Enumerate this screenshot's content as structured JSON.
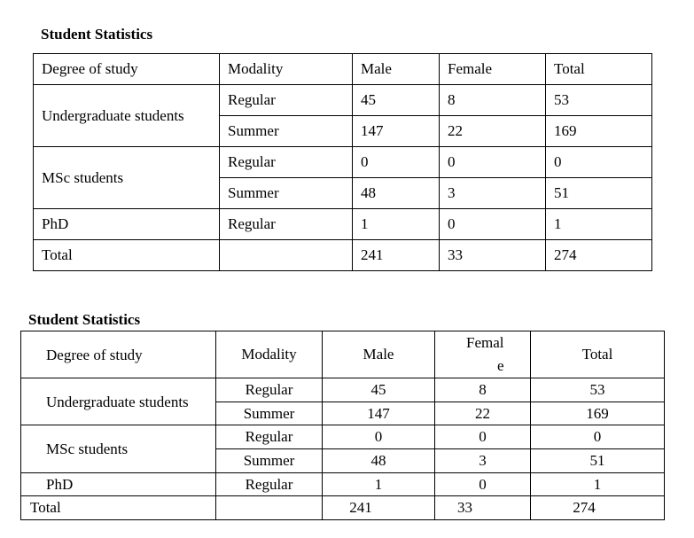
{
  "tables": [
    {
      "title": "Student Statistics",
      "header": [
        "Degree of study",
        "Modality",
        "Male",
        "Female",
        "Total"
      ],
      "groups": [
        {
          "degree": "Undergraduate students",
          "rows": [
            [
              "Regular",
              45,
              8,
              53
            ],
            [
              "Summer",
              147,
              22,
              169
            ]
          ]
        },
        {
          "degree": "MSc students",
          "rows": [
            [
              "Regular",
              0,
              0,
              0
            ],
            [
              "Summer",
              48,
              3,
              51
            ]
          ]
        },
        {
          "degree": "PhD",
          "rows": [
            [
              "Regular",
              1,
              0,
              1
            ]
          ]
        }
      ],
      "total": {
        "label": "Total",
        "values": [
          241,
          33,
          274
        ]
      }
    },
    {
      "title": "Student Statistics",
      "header": [
        "Degree of study",
        "Modality",
        "Male",
        "Female",
        "Total"
      ],
      "groups": [
        {
          "degree": "Undergraduate students",
          "rows": [
            [
              "Regular",
              45,
              8,
              53
            ],
            [
              "Summer",
              147,
              22,
              169
            ]
          ]
        },
        {
          "degree": "MSc students",
          "rows": [
            [
              "Regular",
              0,
              0,
              0
            ],
            [
              "Summer",
              48,
              3,
              51
            ]
          ]
        },
        {
          "degree": "PhD",
          "rows": [
            [
              "Regular",
              1,
              0,
              1
            ]
          ]
        }
      ],
      "total": {
        "label": "Total",
        "values": [
          241,
          33,
          274
        ]
      }
    }
  ]
}
